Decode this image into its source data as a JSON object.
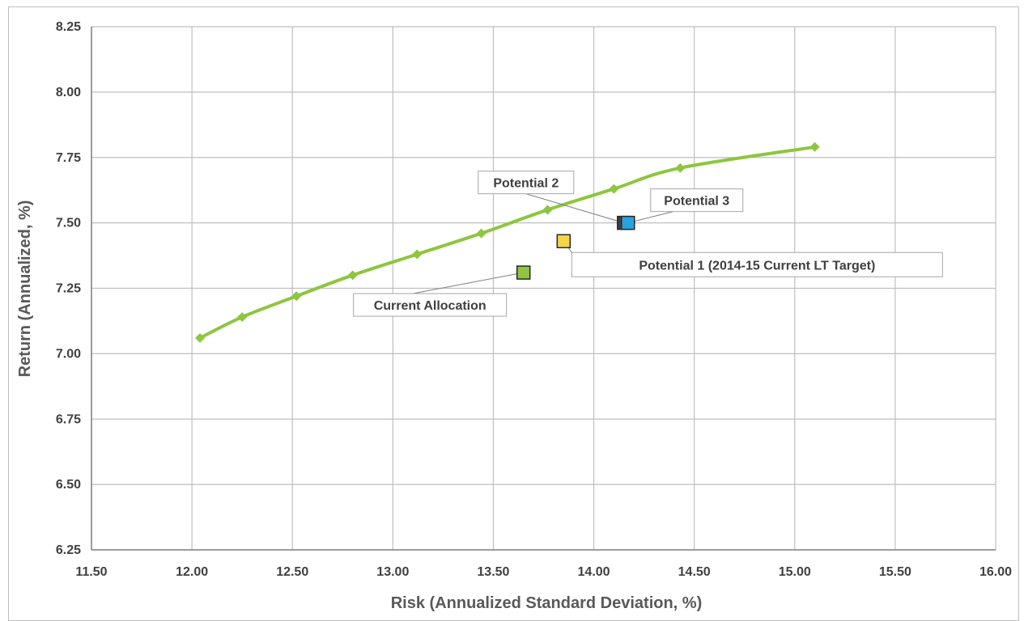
{
  "chart_data": {
    "type": "scatter",
    "xlabel": "Risk (Annualized Standard Deviation, %)",
    "ylabel": "Return (Annualized, %)",
    "xlim": [
      11.5,
      16.0
    ],
    "ylim": [
      6.25,
      8.25
    ],
    "x_ticks": [
      "11.50",
      "12.00",
      "12.50",
      "13.00",
      "13.50",
      "14.00",
      "14.50",
      "15.00",
      "15.50",
      "16.00"
    ],
    "y_ticks": [
      "6.25",
      "6.50",
      "6.75",
      "7.00",
      "7.25",
      "7.50",
      "7.75",
      "8.00",
      "8.25"
    ],
    "grid": true,
    "frontier": {
      "color": "#8dc63f",
      "x": [
        12.04,
        12.25,
        12.52,
        12.8,
        13.12,
        13.44,
        13.77,
        14.1,
        14.43,
        15.1
      ],
      "y": [
        7.06,
        7.14,
        7.22,
        7.3,
        7.38,
        7.46,
        7.55,
        7.63,
        7.71,
        7.79
      ]
    },
    "portfolios": [
      {
        "label": "Current Allocation",
        "x": 13.65,
        "y": 7.31,
        "color": "#8dc63f"
      },
      {
        "label": "Potential 1 (2014-15 Current LT Target)",
        "x": 13.85,
        "y": 7.43,
        "color": "#f5d547"
      },
      {
        "label": "Potential 2",
        "x": 14.15,
        "y": 7.5,
        "color": "#404040"
      },
      {
        "label": "Potential 3",
        "x": 14.17,
        "y": 7.5,
        "color": "#29a3e0"
      }
    ]
  }
}
